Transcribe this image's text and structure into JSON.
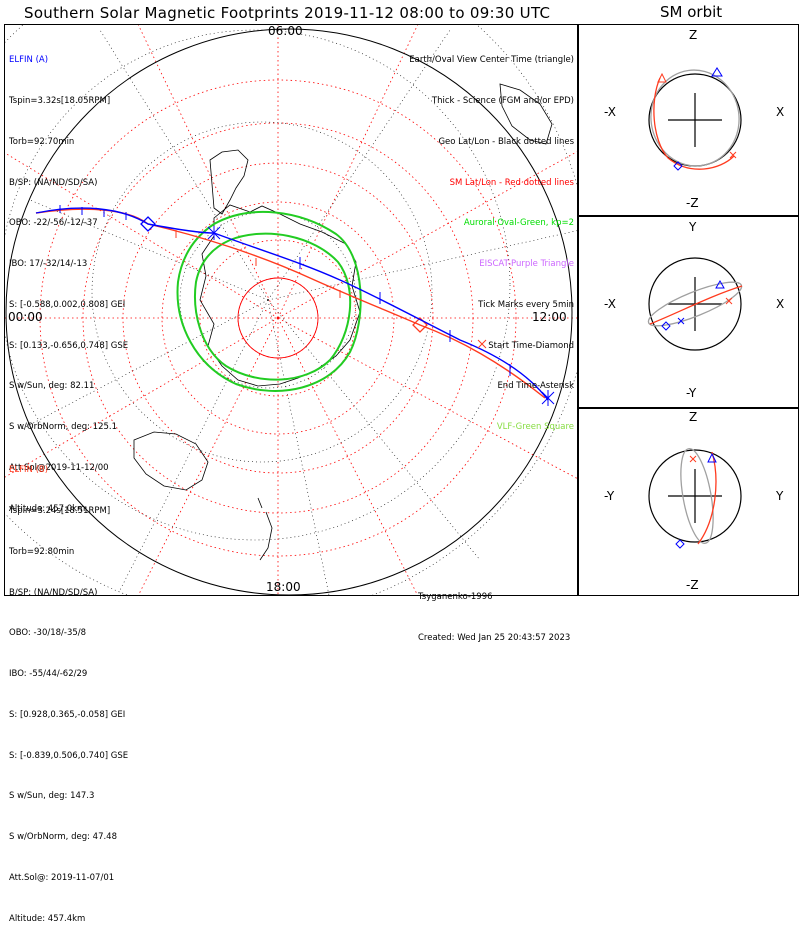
{
  "title": "Southern Solar Magnetic Footprints 2019-11-12 08:00 to 09:30 UTC",
  "orbit_title": "SM orbit",
  "hour_labels": {
    "top": "06:00",
    "left": "00:00",
    "right": "12:00",
    "bottom": "18:00"
  },
  "satellite_a": {
    "color": "#0000ff",
    "lines": [
      "ELFIN (A)",
      "Tspin=3.32s[18.05RPM]",
      "Torb=92.70min",
      "B/SP: (NA/ND/SD/SA)",
      "OBO: -22/-56/-12/-37",
      "IBO: 17/-32/14/-13",
      "S: [-0.588,0.002,0.808] GEI",
      "S: [0.133,-0.656,0.748] GSE",
      "S w/Sun, deg: 82.11",
      "S w/OrbNorm, deg: 125.1",
      "Att.Sol@2019-11-12/00",
      "Altitude: 457.0km"
    ]
  },
  "satellite_b": {
    "color": "#ff3b1f",
    "lines": [
      "ELFIN (B)",
      "Tspin=3.24s[18.51RPM]",
      "Torb=92.80min",
      "B/SP: (NA/ND/SD/SA)",
      "OBO: -30/18/-35/8",
      "IBO: -55/44/-62/29",
      "S: [0.928,0.365,-0.058] GEI",
      "S: [-0.839,0.506,0.740] GSE",
      "S w/Sun, deg: 147.3",
      "S w/OrbNorm, deg: 47.48",
      "Att.Sol@: 2019-11-07/01",
      "Altitude: 457.4km"
    ]
  },
  "legend": [
    {
      "text": "Earth/Oval View Center Time (triangle)",
      "color": "#000000"
    },
    {
      "text": "Thick - Science (FGM and/or EPD)",
      "color": "#000000"
    },
    {
      "text": "Geo Lat/Lon - Black dotted lines",
      "color": "#000000"
    },
    {
      "text": "SM Lat/Lon - Red dotted lines",
      "color": "#ff0000"
    },
    {
      "text": "Auroral Oval-Green, kp=2",
      "color": "#00dd00"
    },
    {
      "text": "EISCAT-Purple Triangle",
      "color": "#cc66ff"
    },
    {
      "text": "Tick Marks every 5min",
      "color": "#000000"
    },
    {
      "text": "Start Time-Diamond",
      "color": "#000000"
    },
    {
      "text": "End Time-Asterisk",
      "color": "#000000"
    },
    {
      "text": "VLF-Green Square",
      "color": "#88dd44"
    }
  ],
  "credit": [
    "Tsyganenko-1996",
    "Created: Wed Jan 25 20:43:57 2023"
  ],
  "orbit_panels": [
    {
      "up": "Z",
      "down": "-Z",
      "left": "-X",
      "right": "X"
    },
    {
      "up": "Y",
      "down": "-Y",
      "left": "-X",
      "right": "X"
    },
    {
      "up": "Z",
      "down": "-Z",
      "left": "-Y",
      "right": "Y"
    }
  ]
}
